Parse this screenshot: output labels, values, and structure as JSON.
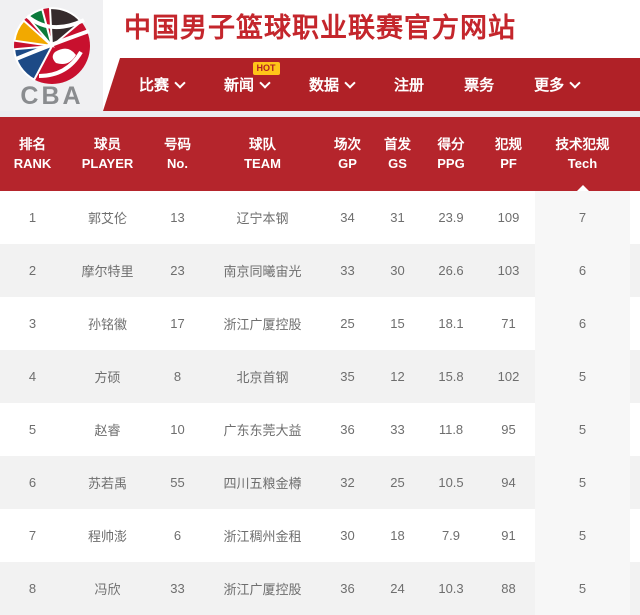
{
  "header": {
    "logo_text": "CBA",
    "title": "中国男子篮球职业联赛官方网站"
  },
  "nav": {
    "items": [
      {
        "label": "比赛",
        "chevron": true
      },
      {
        "label": "新闻",
        "chevron": true,
        "badge": "HOT"
      },
      {
        "label": "数据",
        "chevron": true
      },
      {
        "label": "注册",
        "chevron": false
      },
      {
        "label": "票务",
        "chevron": false
      },
      {
        "label": "更多",
        "chevron": true
      }
    ]
  },
  "table": {
    "columns": [
      {
        "key": "rank",
        "zh": "排名",
        "en": "RANK"
      },
      {
        "key": "player",
        "zh": "球员",
        "en": "PLAYER"
      },
      {
        "key": "no",
        "zh": "号码",
        "en": "No."
      },
      {
        "key": "team",
        "zh": "球队",
        "en": "TEAM"
      },
      {
        "key": "gp",
        "zh": "场次",
        "en": "GP"
      },
      {
        "key": "gs",
        "zh": "首发",
        "en": "GS"
      },
      {
        "key": "ppg",
        "zh": "得分",
        "en": "PPG"
      },
      {
        "key": "pf",
        "zh": "犯规",
        "en": "PF"
      },
      {
        "key": "tech",
        "zh": "技术犯规",
        "en": "Tech"
      }
    ],
    "sorted_column_key": "tech",
    "rows": [
      [
        "1",
        "郭艾伦",
        "13",
        "辽宁本钢",
        "34",
        "31",
        "23.9",
        "109",
        "7"
      ],
      [
        "2",
        "摩尔特里",
        "23",
        "南京同曦宙光",
        "33",
        "30",
        "26.6",
        "103",
        "6"
      ],
      [
        "3",
        "孙铭徽",
        "17",
        "浙江广厦控股",
        "25",
        "15",
        "18.1",
        "71",
        "6"
      ],
      [
        "4",
        "方硕",
        "8",
        "北京首钢",
        "35",
        "12",
        "15.8",
        "102",
        "5"
      ],
      [
        "5",
        "赵睿",
        "10",
        "广东东莞大益",
        "36",
        "33",
        "11.8",
        "95",
        "5"
      ],
      [
        "6",
        "苏若禹",
        "55",
        "四川五粮金樽",
        "32",
        "25",
        "10.5",
        "94",
        "5"
      ],
      [
        "7",
        "程帅澎",
        "6",
        "浙江稠州金租",
        "30",
        "18",
        "7.9",
        "91",
        "5"
      ],
      [
        "8",
        "冯欣",
        "33",
        "浙江广厦控股",
        "36",
        "24",
        "10.3",
        "88",
        "5"
      ]
    ]
  },
  "colors": {
    "nav_red": "#b02127",
    "table_header_red": "#b5252c",
    "title_red": "#c4262c",
    "hot_badge_bg": "#ffc519",
    "hot_badge_text": "#b01e24",
    "row_alt_bg": "#f2f2f2",
    "sorted_col_bg": "#f7f7f7",
    "logo_red": "#c8102e",
    "logo_dark": "#352a2c",
    "logo_green": "#0b7a3b",
    "logo_yellow": "#f2a900",
    "logo_blue": "#1d4a86",
    "logo_gray": "#8a8c8f"
  }
}
